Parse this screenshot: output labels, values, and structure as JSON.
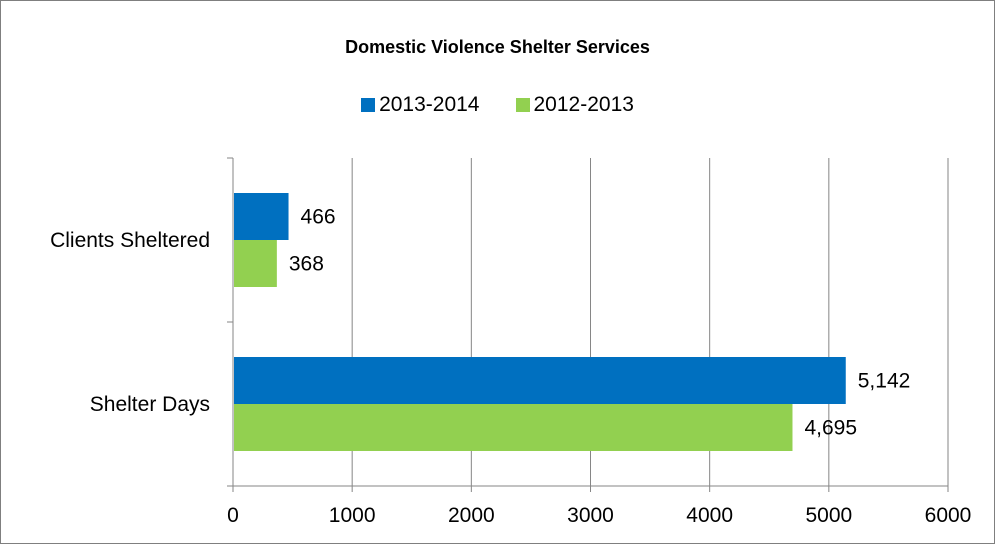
{
  "chart_data": {
    "type": "bar",
    "orientation": "horizontal",
    "title": "Domestic Violence Shelter Services",
    "categories": [
      "Clients Sheltered",
      "Shelter Days"
    ],
    "series": [
      {
        "name": "2013-2014",
        "color": "#0070C0",
        "values": [
          466,
          5142
        ],
        "labels": [
          "466",
          "5,142"
        ]
      },
      {
        "name": "2012-2013",
        "color": "#92D050",
        "values": [
          368,
          4695
        ],
        "labels": [
          "368",
          "4,695"
        ]
      }
    ],
    "xlim": [
      0,
      6000
    ],
    "x_ticks": [
      0,
      1000,
      2000,
      3000,
      4000,
      5000,
      6000
    ],
    "x_tick_labels": [
      "0",
      "1000",
      "2000",
      "3000",
      "4000",
      "5000",
      "6000"
    ],
    "grid": "vertical",
    "legend_position": "top"
  }
}
